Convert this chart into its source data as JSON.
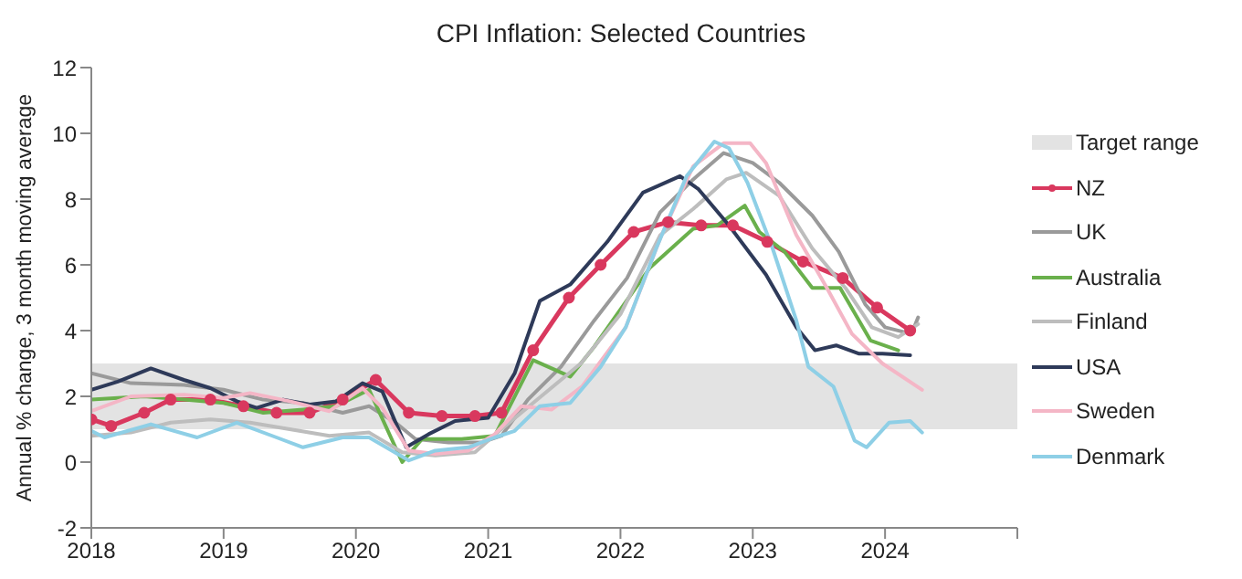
{
  "chart_data": {
    "type": "line",
    "title": "CPI Inflation: Selected Countries",
    "ylabel": "Annual % change, 3 month moving average",
    "xlim": [
      2018,
      2025
    ],
    "xticks": [
      2018,
      2019,
      2020,
      2021,
      2022,
      2023,
      2024,
      {
        "value": 2025,
        "label": null
      }
    ],
    "ylim": [
      -2,
      12
    ],
    "yticks": [
      -2,
      0,
      2,
      4,
      6,
      8,
      10,
      12
    ],
    "legend": "right",
    "marker": "none",
    "line_style": "solid",
    "bands": [
      {
        "axis": "y",
        "from": 1,
        "to": 3,
        "label": "Target range",
        "color": "#e3e3e3"
      }
    ],
    "series": [
      {
        "name": "NZ",
        "color": "#d9385e",
        "marker": "circle",
        "x": [
          2018.0,
          2018.15,
          2018.4,
          2018.6,
          2018.9,
          2019.15,
          2019.4,
          2019.65,
          2019.9,
          2020.15,
          2020.4,
          2020.65,
          2020.9,
          2021.1,
          2021.34,
          2021.61,
          2021.85,
          2022.1,
          2022.36,
          2022.61,
          2022.85,
          2023.11,
          2023.38,
          2023.68,
          2023.94,
          2024.19
        ],
        "values": [
          1.3,
          1.1,
          1.5,
          1.9,
          1.9,
          1.7,
          1.5,
          1.5,
          1.9,
          2.5,
          1.5,
          1.4,
          1.4,
          1.5,
          3.4,
          5.0,
          6.0,
          7.0,
          7.3,
          7.2,
          7.2,
          6.7,
          6.1,
          5.6,
          4.7,
          4.0
        ]
      },
      {
        "name": "UK",
        "color": "#9a9a9a",
        "x": [
          2018.0,
          2018.3,
          2018.7,
          2019.0,
          2019.3,
          2019.6,
          2019.9,
          2020.1,
          2020.3,
          2020.45,
          2020.7,
          2020.95,
          2021.1,
          2021.3,
          2021.55,
          2021.8,
          2022.05,
          2022.3,
          2022.55,
          2022.78,
          2023.0,
          2023.2,
          2023.45,
          2023.65,
          2023.85,
          2024.0,
          2024.2,
          2024.25
        ],
        "values": [
          2.7,
          2.4,
          2.35,
          2.2,
          1.9,
          1.8,
          1.5,
          1.7,
          1.2,
          0.7,
          0.6,
          0.6,
          0.8,
          1.9,
          2.9,
          4.3,
          5.6,
          7.6,
          8.6,
          9.4,
          9.1,
          8.5,
          7.5,
          6.4,
          4.8,
          4.1,
          3.9,
          4.4
        ]
      },
      {
        "name": "Australia",
        "color": "#6ab04c",
        "x": [
          2018.0,
          2018.4,
          2018.7,
          2019.0,
          2019.3,
          2019.6,
          2019.85,
          2020.1,
          2020.35,
          2020.5,
          2020.8,
          2021.05,
          2021.34,
          2021.62,
          2021.8,
          2022.22,
          2022.55,
          2022.73,
          2022.94,
          2023.05,
          2023.24,
          2023.45,
          2023.66,
          2023.89,
          2024.1
        ],
        "values": [
          1.9,
          2.0,
          1.9,
          1.8,
          1.5,
          1.6,
          1.7,
          2.2,
          0.0,
          0.7,
          0.7,
          0.8,
          3.1,
          2.6,
          3.5,
          5.9,
          7.1,
          7.2,
          7.8,
          7.0,
          6.4,
          5.3,
          5.3,
          3.7,
          3.4
        ]
      },
      {
        "name": "Finland",
        "color": "#bdbdbd",
        "x": [
          2018.0,
          2018.3,
          2018.6,
          2018.9,
          2019.2,
          2019.5,
          2019.8,
          2020.1,
          2020.35,
          2020.6,
          2020.9,
          2021.1,
          2021.4,
          2021.7,
          2022.0,
          2022.3,
          2022.55,
          2022.8,
          2022.95,
          2023.2,
          2023.45,
          2023.7,
          2023.9,
          2024.1,
          2024.25
        ],
        "values": [
          0.8,
          0.9,
          1.2,
          1.3,
          1.2,
          1.0,
          0.8,
          0.9,
          0.3,
          0.2,
          0.3,
          1.0,
          2.0,
          3.0,
          4.5,
          6.9,
          7.7,
          8.6,
          8.8,
          8.1,
          6.5,
          5.3,
          4.1,
          3.8,
          4.2
        ]
      },
      {
        "name": "USA",
        "color": "#2e3a59",
        "x": [
          2018.0,
          2018.2,
          2018.45,
          2018.7,
          2018.9,
          2019.1,
          2019.25,
          2019.45,
          2019.65,
          2019.85,
          2020.05,
          2020.2,
          2020.38,
          2020.55,
          2020.75,
          2021.0,
          2021.2,
          2021.39,
          2021.62,
          2021.9,
          2022.17,
          2022.45,
          2022.59,
          2022.82,
          2023.1,
          2023.33,
          2023.47,
          2023.63,
          2023.8,
          2023.98,
          2024.19
        ],
        "values": [
          2.2,
          2.45,
          2.85,
          2.5,
          2.25,
          1.85,
          1.65,
          1.9,
          1.75,
          1.85,
          2.4,
          2.15,
          0.45,
          0.85,
          1.25,
          1.35,
          2.7,
          4.9,
          5.4,
          6.7,
          8.2,
          8.7,
          8.3,
          7.2,
          5.7,
          4.1,
          3.4,
          3.55,
          3.3,
          3.3,
          3.25
        ]
      },
      {
        "name": "Sweden",
        "color": "#f4b6c6",
        "x": [
          2018.0,
          2018.3,
          2018.7,
          2019.0,
          2019.2,
          2019.5,
          2019.8,
          2020.05,
          2020.2,
          2020.4,
          2020.6,
          2020.85,
          2021.05,
          2021.25,
          2021.48,
          2021.71,
          2022.04,
          2022.31,
          2022.55,
          2022.78,
          2022.98,
          2023.1,
          2023.33,
          2023.56,
          2023.75,
          2023.98,
          2024.28
        ],
        "values": [
          1.55,
          2.0,
          2.05,
          1.95,
          2.1,
          1.85,
          1.55,
          2.25,
          1.65,
          0.35,
          0.25,
          0.35,
          0.85,
          1.7,
          1.6,
          2.3,
          4.1,
          6.9,
          9.0,
          9.7,
          9.7,
          9.1,
          6.9,
          5.3,
          3.9,
          3.0,
          2.2
        ]
      },
      {
        "name": "Denmark",
        "color": "#8ecfe6",
        "x": [
          2018.0,
          2018.1,
          2018.45,
          2018.8,
          2019.1,
          2019.4,
          2019.6,
          2019.9,
          2020.1,
          2020.4,
          2020.6,
          2020.85,
          2021.05,
          2021.2,
          2021.39,
          2021.62,
          2021.85,
          2022.04,
          2022.27,
          2022.5,
          2022.71,
          2022.82,
          2022.96,
          2023.15,
          2023.33,
          2023.42,
          2023.61,
          2023.77,
          2023.86,
          2024.03,
          2024.19,
          2024.28
        ],
        "values": [
          0.95,
          0.75,
          1.15,
          0.75,
          1.2,
          0.75,
          0.45,
          0.75,
          0.75,
          0.05,
          0.35,
          0.45,
          0.75,
          0.95,
          1.7,
          1.8,
          2.9,
          4.1,
          6.5,
          8.7,
          9.75,
          9.55,
          8.5,
          6.5,
          4.3,
          2.9,
          2.3,
          0.65,
          0.45,
          1.2,
          1.25,
          0.9
        ]
      }
    ]
  }
}
